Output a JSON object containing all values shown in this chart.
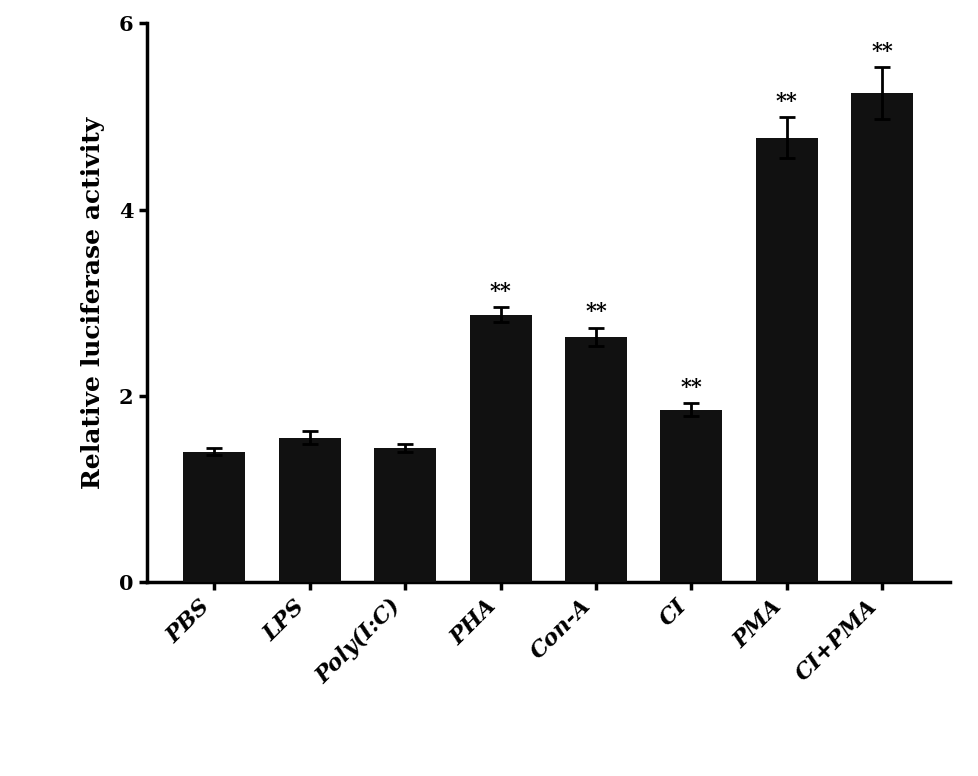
{
  "categories": [
    "PBS",
    "LPS",
    "Poly(I:C)",
    "PHA",
    "Con-A",
    "CI",
    "PMA",
    "CI+PMA"
  ],
  "values": [
    1.4,
    1.55,
    1.44,
    2.87,
    2.63,
    1.85,
    4.77,
    5.25
  ],
  "errors": [
    0.04,
    0.07,
    0.04,
    0.08,
    0.1,
    0.07,
    0.22,
    0.28
  ],
  "sig_labels": [
    null,
    null,
    null,
    "**",
    "**",
    "**",
    "**",
    "**"
  ],
  "bar_color": "#111111",
  "ylabel": "Relative luciferase activity",
  "ylim": [
    0,
    6
  ],
  "yticks": [
    0,
    2,
    4,
    6
  ],
  "background_color": "#ffffff",
  "bar_width": 0.65,
  "sig_fontsize": 15,
  "ylabel_fontsize": 18,
  "tick_fontsize": 15,
  "xtick_fontsize": 16
}
